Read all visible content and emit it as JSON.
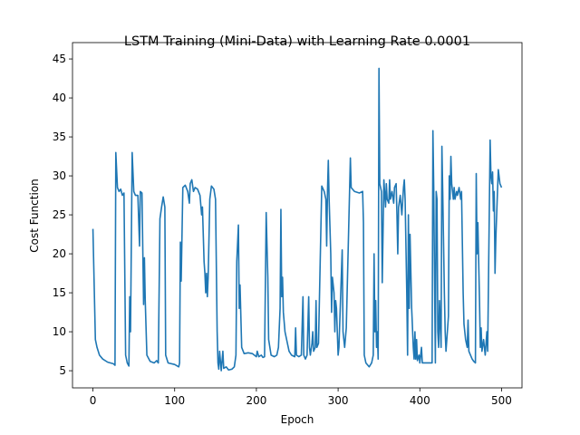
{
  "chart_data": {
    "type": "line",
    "title": "LSTM Training (Mini-Data) with Learning Rate 0.0001",
    "x_label": "Epoch",
    "y_label": "Cost Function",
    "xlim": [
      -25,
      525
    ],
    "ylim": [
      2.8,
      47.1
    ],
    "xticks": [
      0,
      100,
      200,
      300,
      400,
      500
    ],
    "yticks": [
      5,
      10,
      15,
      20,
      25,
      30,
      35,
      40,
      45
    ],
    "series": [
      {
        "name": "cost",
        "color": "#1f77b4",
        "x": [
          0,
          3,
          5,
          8,
          12,
          18,
          25,
          27,
          28,
          30,
          32,
          34,
          36,
          38,
          40,
          42,
          44,
          45,
          46,
          48,
          50,
          52,
          55,
          57,
          58,
          60,
          62,
          63,
          64,
          66,
          70,
          75,
          78,
          80,
          82,
          84,
          86,
          88,
          89,
          92,
          100,
          105,
          106,
          107,
          108,
          110,
          113,
          116,
          118,
          119,
          121,
          123,
          125,
          128,
          131,
          133,
          134,
          136,
          137,
          138,
          139,
          140,
          141,
          143,
          145,
          148,
          150,
          152,
          153,
          154,
          155,
          157,
          159,
          160,
          163,
          166,
          170,
          173,
          175,
          176,
          178,
          179,
          180,
          182,
          185,
          190,
          195,
          200,
          201,
          203,
          206,
          208,
          210,
          212,
          213,
          214,
          215,
          218,
          222,
          225,
          227,
          229,
          230,
          231,
          232,
          233,
          235,
          238,
          240,
          243,
          247,
          248,
          249,
          252,
          255,
          257,
          258,
          260,
          262,
          264,
          265,
          266,
          268,
          269,
          270,
          272,
          273,
          274,
          276,
          280,
          283,
          285,
          286,
          287,
          288,
          289,
          291,
          292,
          293,
          295,
          296,
          297,
          298,
          300,
          301,
          305,
          306,
          308,
          310,
          315,
          316,
          320,
          326,
          330,
          331,
          332,
          334,
          338,
          341,
          343,
          344,
          345,
          346,
          347,
          348,
          349,
          350,
          351,
          353,
          354,
          356,
          358,
          359,
          360,
          362,
          363,
          364,
          366,
          368,
          369,
          371,
          372,
          373,
          374,
          376,
          378,
          380,
          381,
          382,
          384,
          385,
          386,
          387,
          388,
          390,
          392,
          393,
          394,
          395,
          396,
          397,
          399,
          400,
          402,
          403,
          410,
          415,
          416,
          417,
          418,
          419,
          420,
          421,
          422,
          423,
          424,
          426,
          427,
          428,
          430,
          431,
          432,
          433,
          435,
          436,
          437,
          438,
          439,
          441,
          442,
          443,
          445,
          446,
          448,
          450,
          451,
          453,
          454,
          456,
          458,
          459,
          460,
          462,
          464,
          466,
          468,
          469,
          470,
          471,
          473,
          474,
          475,
          476,
          478,
          480,
          482,
          483,
          486,
          487,
          488,
          489,
          490,
          491,
          492,
          493,
          495,
          496,
          498,
          500
        ],
        "values": [
          23.2,
          9,
          8,
          7,
          6.5,
          6.1,
          5.9,
          5.7,
          33,
          28.5,
          28,
          28.3,
          27.5,
          27.8,
          7,
          6,
          5.6,
          14.5,
          10,
          33,
          28,
          27.5,
          27.5,
          21,
          28,
          27.8,
          13.5,
          19.5,
          14,
          7,
          6.2,
          6,
          6.3,
          6,
          24.5,
          26,
          27.3,
          26,
          7,
          6,
          5.8,
          5.5,
          6,
          21.5,
          16.5,
          28.5,
          28.8,
          28,
          26.5,
          29,
          29.5,
          28,
          28.5,
          28.3,
          27.5,
          25,
          26,
          19,
          17.5,
          15,
          17.5,
          14.5,
          17,
          27,
          28.7,
          28.3,
          27,
          10,
          6,
          5.2,
          7.5,
          5,
          7.5,
          5.3,
          5.5,
          5.1,
          5.2,
          5.5,
          7,
          19,
          23.7,
          13,
          16,
          8,
          7.2,
          7.3,
          7.2,
          6.8,
          7.5,
          6.8,
          7,
          6.7,
          6.8,
          25.3,
          21,
          17,
          9,
          7,
          6.8,
          7,
          8,
          13,
          25.7,
          14.5,
          17,
          12.5,
          10,
          8.5,
          7.5,
          7,
          6.8,
          10.5,
          7,
          6.8,
          7,
          14.5,
          7,
          6.5,
          7,
          14.5,
          8,
          7,
          8.5,
          10,
          7.5,
          8,
          14,
          8,
          8.5,
          28.7,
          28,
          27,
          21,
          28,
          32,
          27,
          20,
          12.5,
          17,
          15,
          10,
          14,
          13,
          7,
          8,
          20.5,
          10,
          8,
          10.5,
          32.3,
          28.5,
          28,
          27.8,
          28,
          24,
          7,
          6,
          5.5,
          6,
          7,
          20,
          10,
          14,
          8,
          10,
          6.5,
          43.8,
          29,
          28,
          16.3,
          29.5,
          26,
          29,
          27,
          26.5,
          29.5,
          27,
          28,
          26.5,
          28.5,
          29,
          25,
          20,
          26,
          27.5,
          25,
          28.5,
          29.5,
          27,
          15,
          7,
          25,
          13,
          22.5,
          13,
          8,
          6.5,
          10,
          6.5,
          9,
          6.3,
          7,
          6,
          8,
          6,
          6,
          6,
          35.8,
          28.5,
          16.5,
          6,
          28,
          27,
          10,
          8,
          14,
          8,
          33.8,
          28,
          15,
          10,
          7.5,
          9,
          12,
          30,
          27,
          32.5,
          29,
          27,
          28.5,
          27,
          28,
          27.5,
          28.5,
          27,
          28,
          15,
          11,
          9,
          8,
          11.5,
          7.5,
          7,
          6.5,
          6.2,
          6,
          30.3,
          20,
          24,
          14,
          8,
          10.5,
          7.5,
          9,
          7,
          10,
          7.5,
          34.6,
          30,
          29,
          30.5,
          25.5,
          28,
          17.5,
          22,
          28,
          30.8,
          29,
          28.5
        ]
      }
    ]
  }
}
